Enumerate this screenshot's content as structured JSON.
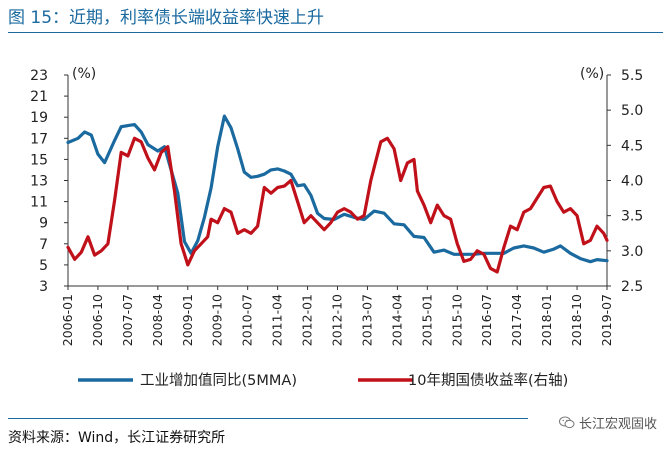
{
  "header": {
    "title": "图 15：近期，利率债长端收益率快速上升"
  },
  "footer": {
    "source": "资料来源：Wind，长江证券研究所",
    "watermark": "长江宏观固收",
    "watermark_icon": "wechat-icon"
  },
  "chart_data": {
    "type": "line",
    "title": "",
    "left_unit": "(%)",
    "right_unit": "(%)",
    "ylim_left": [
      3,
      23
    ],
    "yticks_left": [
      3,
      5,
      7,
      9,
      11,
      13,
      15,
      17,
      19,
      21,
      23
    ],
    "ylim_right": [
      2.5,
      5.5
    ],
    "yticks_right": [
      "2.5",
      "3.0",
      "3.5",
      "4.0",
      "4.5",
      "5.0",
      "5.5"
    ],
    "x_range": [
      "2006-01",
      "2019-07"
    ],
    "x_tick_labels": [
      "2006-01",
      "2006-10",
      "2007-07",
      "2008-04",
      "2009-01",
      "2009-10",
      "2010-07",
      "2011-04",
      "2012-01",
      "2012-10",
      "2013-07",
      "2014-04",
      "2015-01",
      "2015-10",
      "2016-07",
      "2017-04",
      "2018-01",
      "2018-10",
      "2019-07"
    ],
    "grid": false,
    "legend_position": "bottom",
    "series": [
      {
        "name": "工业增加值同比(5MMA)",
        "axis": "left",
        "color": "#1a6aa0",
        "points": [
          [
            "2006-01",
            16.6
          ],
          [
            "2006-04",
            17.0
          ],
          [
            "2006-06",
            17.6
          ],
          [
            "2006-08",
            17.3
          ],
          [
            "2006-10",
            15.5
          ],
          [
            "2006-12",
            14.7
          ],
          [
            "2007-03",
            16.8
          ],
          [
            "2007-05",
            18.1
          ],
          [
            "2007-07",
            18.2
          ],
          [
            "2007-09",
            18.3
          ],
          [
            "2007-11",
            17.6
          ],
          [
            "2008-01",
            16.4
          ],
          [
            "2008-04",
            15.8
          ],
          [
            "2008-06",
            16.2
          ],
          [
            "2008-08",
            14.0
          ],
          [
            "2008-10",
            11.8
          ],
          [
            "2008-12",
            7.2
          ],
          [
            "2009-02",
            6.1
          ],
          [
            "2009-04",
            7.3
          ],
          [
            "2009-06",
            9.5
          ],
          [
            "2009-08",
            12.3
          ],
          [
            "2009-10",
            16.2
          ],
          [
            "2009-12",
            19.1
          ],
          [
            "2010-02",
            18.0
          ],
          [
            "2010-04",
            16.0
          ],
          [
            "2010-06",
            13.8
          ],
          [
            "2010-08",
            13.3
          ],
          [
            "2010-10",
            13.4
          ],
          [
            "2010-12",
            13.6
          ],
          [
            "2011-02",
            14.0
          ],
          [
            "2011-04",
            14.1
          ],
          [
            "2011-06",
            13.9
          ],
          [
            "2011-08",
            13.6
          ],
          [
            "2011-10",
            12.5
          ],
          [
            "2011-12",
            12.6
          ],
          [
            "2012-02",
            11.6
          ],
          [
            "2012-04",
            9.9
          ],
          [
            "2012-06",
            9.4
          ],
          [
            "2012-09",
            9.3
          ],
          [
            "2012-12",
            9.8
          ],
          [
            "2013-03",
            9.5
          ],
          [
            "2013-06",
            9.3
          ],
          [
            "2013-09",
            10.1
          ],
          [
            "2013-12",
            9.9
          ],
          [
            "2014-03",
            8.9
          ],
          [
            "2014-06",
            8.8
          ],
          [
            "2014-09",
            7.7
          ],
          [
            "2014-12",
            7.6
          ],
          [
            "2015-03",
            6.2
          ],
          [
            "2015-06",
            6.4
          ],
          [
            "2015-09",
            6.0
          ],
          [
            "2015-12",
            6.0
          ],
          [
            "2016-03",
            6.0
          ],
          [
            "2016-06",
            6.1
          ],
          [
            "2016-09",
            6.1
          ],
          [
            "2016-12",
            6.1
          ],
          [
            "2017-03",
            6.6
          ],
          [
            "2017-06",
            6.8
          ],
          [
            "2017-09",
            6.6
          ],
          [
            "2017-12",
            6.2
          ],
          [
            "2018-03",
            6.5
          ],
          [
            "2018-05",
            6.8
          ],
          [
            "2018-08",
            6.1
          ],
          [
            "2018-11",
            5.6
          ],
          [
            "2019-02",
            5.3
          ],
          [
            "2019-04",
            5.5
          ],
          [
            "2019-07",
            5.4
          ]
        ]
      },
      {
        "name": "10年期国债收益率(右轴)",
        "axis": "right",
        "color": "#c0101a",
        "points": [
          [
            "2006-01",
            3.05
          ],
          [
            "2006-03",
            2.88
          ],
          [
            "2006-05",
            2.98
          ],
          [
            "2006-07",
            3.2
          ],
          [
            "2006-09",
            2.94
          ],
          [
            "2006-11",
            3.0
          ],
          [
            "2007-01",
            3.1
          ],
          [
            "2007-03",
            3.72
          ],
          [
            "2007-05",
            4.4
          ],
          [
            "2007-07",
            4.35
          ],
          [
            "2007-09",
            4.6
          ],
          [
            "2007-11",
            4.55
          ],
          [
            "2008-01",
            4.32
          ],
          [
            "2008-03",
            4.15
          ],
          [
            "2008-05",
            4.4
          ],
          [
            "2008-07",
            4.48
          ],
          [
            "2008-09",
            3.85
          ],
          [
            "2008-11",
            3.1
          ],
          [
            "2008-12",
            2.95
          ],
          [
            "2009-01",
            2.8
          ],
          [
            "2009-03",
            3.0
          ],
          [
            "2009-05",
            3.1
          ],
          [
            "2009-07",
            3.2
          ],
          [
            "2009-08",
            3.45
          ],
          [
            "2009-10",
            3.4
          ],
          [
            "2009-12",
            3.6
          ],
          [
            "2010-02",
            3.55
          ],
          [
            "2010-04",
            3.25
          ],
          [
            "2010-06",
            3.3
          ],
          [
            "2010-08",
            3.25
          ],
          [
            "2010-10",
            3.35
          ],
          [
            "2010-12",
            3.9
          ],
          [
            "2011-02",
            3.82
          ],
          [
            "2011-04",
            3.9
          ],
          [
            "2011-06",
            3.92
          ],
          [
            "2011-08",
            4.0
          ],
          [
            "2011-10",
            3.7
          ],
          [
            "2011-12",
            3.4
          ],
          [
            "2012-02",
            3.5
          ],
          [
            "2012-04",
            3.4
          ],
          [
            "2012-06",
            3.3
          ],
          [
            "2012-08",
            3.4
          ],
          [
            "2012-10",
            3.55
          ],
          [
            "2012-12",
            3.6
          ],
          [
            "2013-02",
            3.55
          ],
          [
            "2013-04",
            3.45
          ],
          [
            "2013-06",
            3.5
          ],
          [
            "2013-08",
            4.0
          ],
          [
            "2013-11",
            4.55
          ],
          [
            "2014-01",
            4.6
          ],
          [
            "2014-03",
            4.45
          ],
          [
            "2014-05",
            4.0
          ],
          [
            "2014-07",
            4.25
          ],
          [
            "2014-09",
            4.3
          ],
          [
            "2014-10",
            3.85
          ],
          [
            "2014-12",
            3.65
          ],
          [
            "2015-02",
            3.4
          ],
          [
            "2015-04",
            3.65
          ],
          [
            "2015-06",
            3.5
          ],
          [
            "2015-08",
            3.45
          ],
          [
            "2015-10",
            3.1
          ],
          [
            "2015-12",
            2.85
          ],
          [
            "2016-02",
            2.88
          ],
          [
            "2016-04",
            3.0
          ],
          [
            "2016-06",
            2.95
          ],
          [
            "2016-08",
            2.75
          ],
          [
            "2016-10",
            2.7
          ],
          [
            "2016-12",
            3.05
          ],
          [
            "2017-02",
            3.35
          ],
          [
            "2017-04",
            3.3
          ],
          [
            "2017-06",
            3.55
          ],
          [
            "2017-08",
            3.6
          ],
          [
            "2017-10",
            3.75
          ],
          [
            "2017-12",
            3.9
          ],
          [
            "2018-02",
            3.92
          ],
          [
            "2018-04",
            3.7
          ],
          [
            "2018-06",
            3.55
          ],
          [
            "2018-08",
            3.6
          ],
          [
            "2018-10",
            3.5
          ],
          [
            "2018-12",
            3.1
          ],
          [
            "2019-02",
            3.15
          ],
          [
            "2019-04",
            3.35
          ],
          [
            "2019-06",
            3.25
          ],
          [
            "2019-07",
            3.15
          ]
        ]
      }
    ]
  }
}
